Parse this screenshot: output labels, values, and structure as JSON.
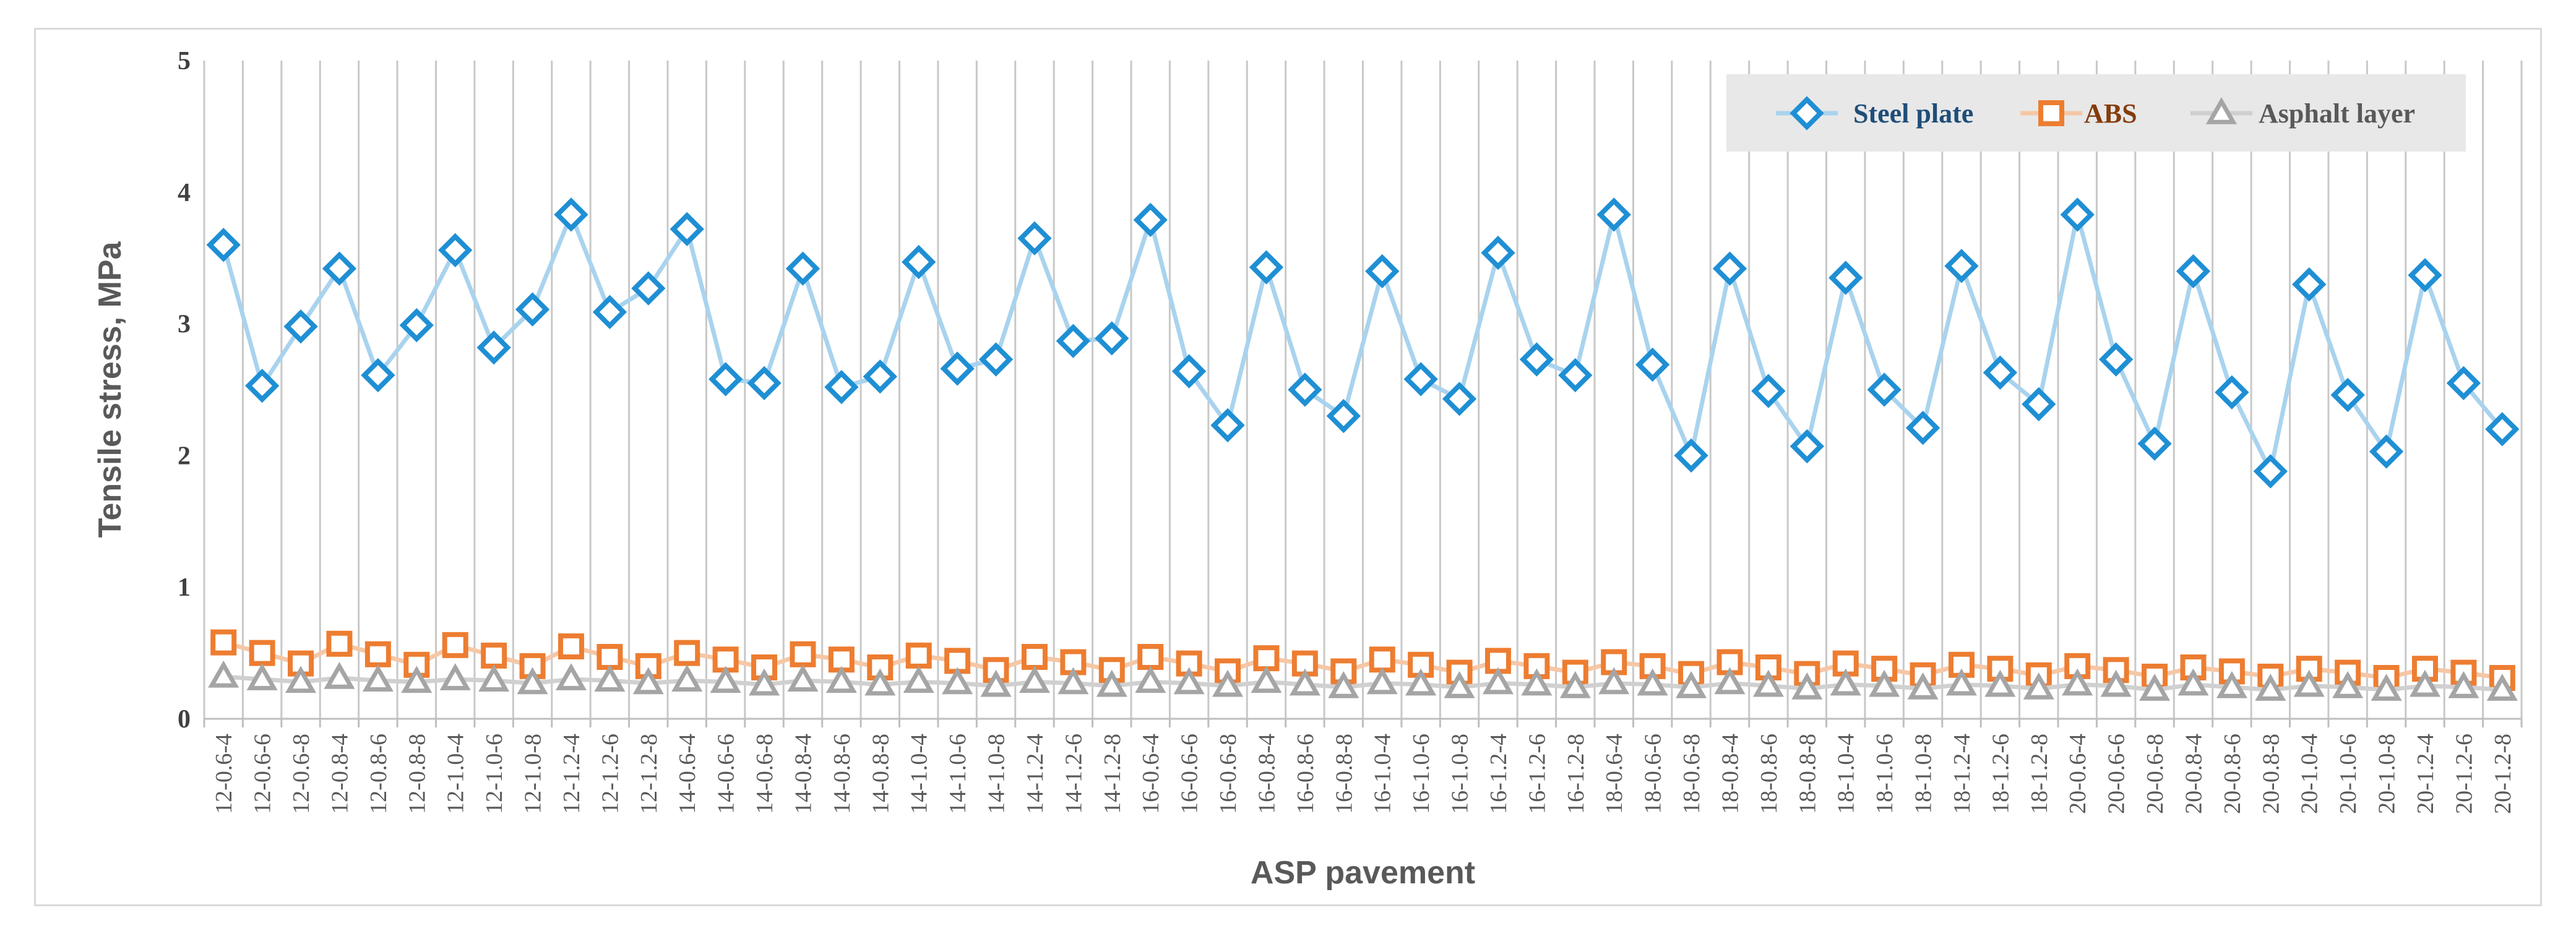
{
  "chart_data": {
    "type": "line",
    "xlabel": "ASP pavement",
    "ylabel": "Tensile stress, MPa",
    "ylim": [
      0,
      5
    ],
    "yticks": [
      "0",
      "1",
      "2",
      "3",
      "4",
      "5"
    ],
    "grid": "vertical",
    "legend_position": "top-right",
    "categories": [
      "12-0.6-4",
      "12-0.6-6",
      "12-0.6-8",
      "12-0.8-4",
      "12-0.8-6",
      "12-0.8-8",
      "12-1.0-4",
      "12-1.0-6",
      "12-1.0-8",
      "12-1.2-4",
      "12-1.2-6",
      "12-1.2-8",
      "14-0.6-4",
      "14-0.6-6",
      "14-0.6-8",
      "14-0.8-4",
      "14-0.8-6",
      "14-0.8-8",
      "14-1.0-4",
      "14-1.0-6",
      "14-1.0-8",
      "14-1.2-4",
      "14-1.2-6",
      "14-1.2-8",
      "16-0.6-4",
      "16-0.6-6",
      "16-0.6-8",
      "16-0.8-4",
      "16-0.8-6",
      "16-0.8-8",
      "16-1.0-4",
      "16-1.0-6",
      "16-1.0-8",
      "16-1.2-4",
      "16-1.2-6",
      "16-1.2-8",
      "18-0.6-4",
      "18-0.6-6",
      "18-0.6-8",
      "18-0.8-4",
      "18-0.8-6",
      "18-0.8-8",
      "18-1.0-4",
      "18-1.0-6",
      "18-1.0-8",
      "18-1.2-4",
      "18-1.2-6",
      "18-1.2-8",
      "20-0.6-4",
      "20-0.6-6",
      "20-0.6-8",
      "20-0.8-4",
      "20-0.8-6",
      "20-0.8-8",
      "20-1.0-4",
      "20-1.0-6",
      "20-1.0-8",
      "20-1.2-4",
      "20-1.2-6",
      "20-1.2-8"
    ],
    "series": [
      {
        "name": "Steel plate",
        "marker": "diamond",
        "color": "#1f8fd4",
        "line_color": "#a9d3ee",
        "text_color": "#1f4e79",
        "values": [
          3.6,
          2.53,
          2.98,
          3.42,
          2.61,
          2.99,
          3.56,
          2.82,
          3.11,
          3.83,
          3.09,
          3.27,
          3.72,
          2.58,
          2.55,
          3.42,
          2.52,
          2.6,
          3.47,
          2.66,
          2.73,
          3.65,
          2.87,
          2.89,
          3.79,
          2.64,
          2.23,
          3.43,
          2.5,
          2.3,
          3.4,
          2.58,
          2.43,
          3.54,
          2.73,
          2.61,
          3.83,
          2.69,
          2.0,
          3.42,
          2.49,
          2.07,
          3.35,
          2.5,
          2.21,
          3.44,
          2.63,
          2.39,
          3.83,
          2.73,
          2.09,
          3.4,
          2.48,
          1.88,
          3.3,
          2.46,
          2.03,
          3.37,
          2.55,
          2.2
        ]
      },
      {
        "name": "ABS",
        "marker": "square",
        "color": "#ed7d31",
        "line_color": "#f6c7a6",
        "text_color": "#843c0c",
        "values": [
          0.58,
          0.5,
          0.42,
          0.57,
          0.49,
          0.41,
          0.56,
          0.48,
          0.4,
          0.55,
          0.47,
          0.4,
          0.5,
          0.45,
          0.39,
          0.49,
          0.45,
          0.39,
          0.48,
          0.44,
          0.37,
          0.47,
          0.43,
          0.37,
          0.47,
          0.42,
          0.36,
          0.46,
          0.42,
          0.36,
          0.45,
          0.41,
          0.35,
          0.44,
          0.4,
          0.35,
          0.43,
          0.4,
          0.34,
          0.43,
          0.39,
          0.34,
          0.42,
          0.38,
          0.33,
          0.41,
          0.38,
          0.33,
          0.4,
          0.37,
          0.32,
          0.39,
          0.36,
          0.32,
          0.38,
          0.35,
          0.31,
          0.38,
          0.35,
          0.31
        ]
      },
      {
        "name": "Asphalt layer",
        "marker": "triangle",
        "color": "#a5a5a5",
        "line_color": "#d0d0d0",
        "text_color": "#595959",
        "values": [
          0.32,
          0.3,
          0.28,
          0.31,
          0.29,
          0.28,
          0.3,
          0.29,
          0.27,
          0.3,
          0.29,
          0.27,
          0.29,
          0.28,
          0.26,
          0.29,
          0.28,
          0.26,
          0.28,
          0.27,
          0.25,
          0.28,
          0.27,
          0.25,
          0.28,
          0.27,
          0.25,
          0.28,
          0.26,
          0.24,
          0.27,
          0.26,
          0.24,
          0.27,
          0.26,
          0.24,
          0.27,
          0.26,
          0.24,
          0.27,
          0.25,
          0.23,
          0.26,
          0.25,
          0.23,
          0.26,
          0.25,
          0.23,
          0.26,
          0.25,
          0.22,
          0.26,
          0.24,
          0.22,
          0.25,
          0.24,
          0.22,
          0.25,
          0.24,
          0.22
        ]
      }
    ]
  }
}
